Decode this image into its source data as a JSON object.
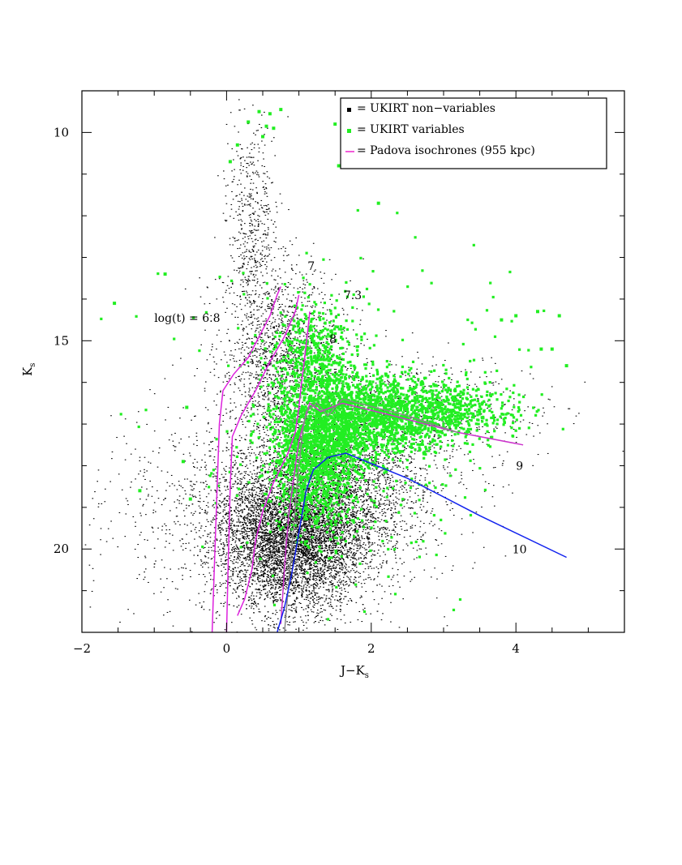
{
  "chart_data": {
    "type": "scatter",
    "title": "",
    "xlabel": "J−K",
    "xlabel_sub": "s",
    "ylabel": "K",
    "ylabel_sub": "s",
    "xlim": [
      -2,
      5.5
    ],
    "ylim": [
      22,
      9
    ],
    "y_inverted": true,
    "grid": false,
    "legend_position": "top-right",
    "x_ticks": [
      -2,
      0,
      2,
      4
    ],
    "x_tick_labels": [
      "−2",
      "0",
      "2",
      "4"
    ],
    "y_ticks": [
      10,
      15,
      20
    ],
    "y_tick_labels": [
      "10",
      "15",
      "20"
    ],
    "legend": [
      {
        "label": "= UKIRT non−variables",
        "kind": "square",
        "color": "#000000"
      },
      {
        "label": "= UKIRT variables",
        "kind": "square",
        "color": "#22ee22"
      },
      {
        "label": "= Padova isochrones (955 kpc)",
        "kind": "line",
        "color": "#ee22cc"
      }
    ],
    "series": [
      {
        "name": "UKIRT non−variables",
        "kind": "scatter",
        "color": "#000000",
        "density": [
          {
            "cx": 0.35,
            "cy": 12.2,
            "sx": 0.18,
            "sy": 1.3,
            "n": 500
          },
          {
            "cx": 0.75,
            "cy": 15.4,
            "sx": 0.4,
            "sy": 1.1,
            "n": 1600
          },
          {
            "cx": 0.9,
            "cy": 19.7,
            "sx": 0.5,
            "sy": 0.85,
            "n": 6500
          },
          {
            "cx": 1.6,
            "cy": 18.3,
            "sx": 0.55,
            "sy": 0.9,
            "n": 1600
          },
          {
            "cx": 2.5,
            "cy": 16.8,
            "sx": 0.9,
            "sy": 0.7,
            "n": 700
          },
          {
            "cx": 0.8,
            "cy": 19.0,
            "sx": 1.1,
            "sy": 1.3,
            "n": 2000
          }
        ]
      },
      {
        "name": "UKIRT variables",
        "kind": "scatter",
        "color": "#22ee22",
        "density": [
          {
            "cx": 1.25,
            "cy": 17.6,
            "sx": 0.32,
            "sy": 0.9,
            "n": 1500
          },
          {
            "cx": 2.0,
            "cy": 16.8,
            "sx": 0.55,
            "sy": 0.5,
            "n": 1300
          },
          {
            "cx": 3.0,
            "cy": 16.7,
            "sx": 0.5,
            "sy": 0.35,
            "n": 500
          },
          {
            "cx": 1.2,
            "cy": 15.3,
            "sx": 0.3,
            "sy": 0.6,
            "n": 400
          },
          {
            "cx": 1.6,
            "cy": 18.6,
            "sx": 0.8,
            "sy": 1.2,
            "n": 180
          },
          {
            "cx": 1.8,
            "cy": 15.6,
            "sx": 1.3,
            "sy": 1.7,
            "n": 120
          }
        ],
        "points": [
          [
            0.45,
            9.5
          ],
          [
            0.6,
            9.55
          ],
          [
            0.75,
            9.45
          ],
          [
            0.55,
            9.85
          ],
          [
            0.3,
            9.75
          ],
          [
            0.15,
            10.3
          ],
          [
            0.05,
            10.7
          ],
          [
            0.5,
            10.1
          ],
          [
            0.65,
            9.9
          ],
          [
            1.5,
            9.8
          ],
          [
            1.55,
            10.8
          ],
          [
            2.1,
            11.7
          ],
          [
            -1.55,
            14.1
          ],
          [
            -0.85,
            13.4
          ],
          [
            -1.2,
            18.6
          ],
          [
            -0.5,
            18.8
          ],
          [
            -0.6,
            17.9
          ],
          [
            -0.55,
            16.6
          ],
          [
            3.8,
            14.5
          ],
          [
            4.0,
            14.4
          ],
          [
            4.3,
            14.3
          ],
          [
            4.6,
            14.4
          ],
          [
            4.35,
            15.2
          ],
          [
            4.5,
            15.2
          ],
          [
            4.7,
            15.6
          ]
        ]
      },
      {
        "name": "log(t) = 6.8",
        "kind": "line",
        "color": "#dd22dd",
        "points": [
          [
            -0.2,
            22
          ],
          [
            -0.17,
            20.5
          ],
          [
            -0.13,
            18.5
          ],
          [
            -0.1,
            17.0
          ],
          [
            -0.05,
            16.2
          ],
          [
            0.1,
            15.8
          ],
          [
            0.3,
            15.4
          ],
          [
            0.45,
            14.9
          ],
          [
            0.6,
            14.4
          ],
          [
            0.7,
            13.9
          ],
          [
            0.75,
            13.7
          ]
        ]
      },
      {
        "name": "log(t) = 7",
        "kind": "line",
        "color": "#dd22dd",
        "points": [
          [
            0.0,
            22
          ],
          [
            0.02,
            20.5
          ],
          [
            0.05,
            18.5
          ],
          [
            0.08,
            17.3
          ],
          [
            0.2,
            16.8
          ],
          [
            0.4,
            16.2
          ],
          [
            0.6,
            15.5
          ],
          [
            0.8,
            14.9
          ],
          [
            0.95,
            14.3
          ],
          [
            1.0,
            13.9
          ]
        ]
      },
      {
        "name": "log(t) = 7.3",
        "kind": "line",
        "color": "#dd22dd",
        "points": [
          [
            0.15,
            21.6
          ],
          [
            0.25,
            21.2
          ],
          [
            0.35,
            20.5
          ],
          [
            0.4,
            19.8
          ],
          [
            0.5,
            19.1
          ],
          [
            0.65,
            18.4
          ],
          [
            0.85,
            17.7
          ],
          [
            0.95,
            17.2
          ],
          [
            1.0,
            16.6
          ],
          [
            1.03,
            16.1
          ],
          [
            1.08,
            15.4
          ],
          [
            1.12,
            14.8
          ],
          [
            1.15,
            14.3
          ]
        ]
      },
      {
        "name": "log(t) = 8",
        "kind": "line",
        "color": "#cc33cc",
        "points": [
          [
            0.75,
            21.8
          ],
          [
            0.78,
            21.0
          ],
          [
            0.82,
            20.0
          ],
          [
            0.86,
            19.2
          ],
          [
            0.92,
            18.4
          ],
          [
            1.0,
            17.4
          ],
          [
            1.08,
            16.9
          ],
          [
            1.15,
            16.5
          ],
          [
            1.3,
            16.7
          ],
          [
            1.45,
            16.6
          ],
          [
            1.6,
            16.5
          ],
          [
            2.3,
            16.8
          ],
          [
            3.2,
            17.2
          ],
          [
            4.1,
            17.5
          ]
        ]
      },
      {
        "name": "log(t) = 9",
        "kind": "line",
        "color": "#888888",
        "points": [
          [
            0.8,
            22
          ],
          [
            0.85,
            21.0
          ],
          [
            0.9,
            20.0
          ],
          [
            0.95,
            19.0
          ],
          [
            1.0,
            18.0
          ],
          [
            1.05,
            17.2
          ],
          [
            1.1,
            16.7
          ],
          [
            1.25,
            16.5
          ],
          [
            1.4,
            16.8
          ],
          [
            1.6,
            16.4
          ],
          [
            2.5,
            16.8
          ],
          [
            3.2,
            17.2
          ]
        ]
      },
      {
        "name": "log(t) = 10",
        "kind": "line",
        "color": "#1122ee",
        "points": [
          [
            0.7,
            22
          ],
          [
            0.8,
            21.4
          ],
          [
            0.9,
            20.6
          ],
          [
            1.0,
            19.6
          ],
          [
            1.1,
            18.6
          ],
          [
            1.2,
            18.1
          ],
          [
            1.4,
            17.8
          ],
          [
            1.65,
            17.7
          ],
          [
            2.5,
            18.3
          ],
          [
            3.5,
            19.2
          ],
          [
            4.7,
            20.2
          ]
        ]
      }
    ],
    "annotations": [
      {
        "text": "log(t) = 6.8",
        "x": -1.0,
        "y": 14.55
      },
      {
        "text": "7",
        "x": 1.12,
        "y": 13.3
      },
      {
        "text": "7.3",
        "x": 1.62,
        "y": 14.0
      },
      {
        "text": "8",
        "x": 1.42,
        "y": 15.05
      },
      {
        "text": "9",
        "x": 4.0,
        "y": 18.1
      },
      {
        "text": "10",
        "x": 3.95,
        "y": 20.1
      }
    ]
  }
}
